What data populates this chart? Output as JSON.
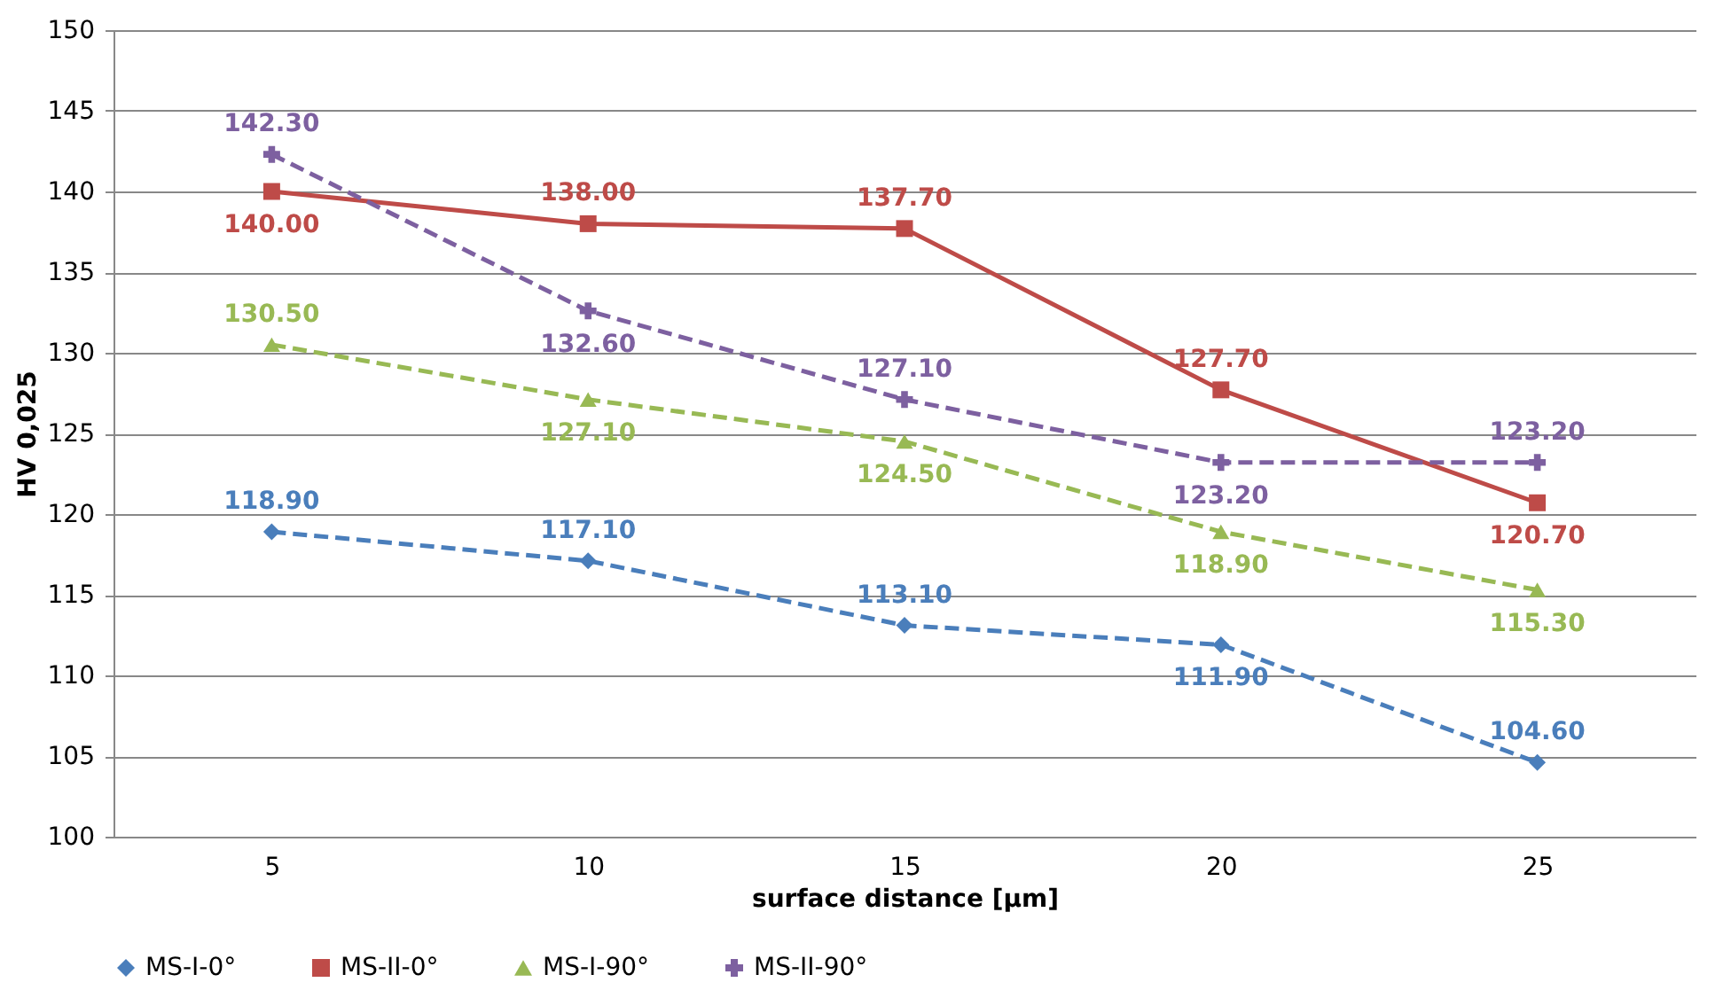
{
  "chart_data": {
    "type": "line",
    "xlabel": "surface distance [μm]",
    "ylabel": "HV 0,025",
    "categories": [
      "5",
      "10",
      "15",
      "20",
      "25"
    ],
    "series": [
      {
        "name": "MS-I-0°",
        "color": "#4a7ebb",
        "marker": "diamond",
        "line_style": "dashed",
        "values": [
          118.9,
          117.1,
          113.1,
          111.9,
          104.6
        ],
        "value_labels": [
          "118.90",
          "117.10",
          "113.10",
          "111.90",
          "104.60"
        ]
      },
      {
        "name": "MS-II-0°",
        "color": "#be4b48",
        "marker": "square",
        "line_style": "solid",
        "values": [
          140.0,
          138.0,
          137.7,
          127.7,
          120.7
        ],
        "value_labels": [
          "140.00",
          "138.00",
          "137.70",
          "127.70",
          "120.70"
        ]
      },
      {
        "name": "MS-I-90°",
        "color": "#98b954",
        "marker": "triangle",
        "line_style": "dashed",
        "values": [
          130.5,
          127.1,
          124.5,
          118.9,
          115.3
        ],
        "value_labels": [
          "130.50",
          "127.10",
          "124.50",
          "118.90",
          "115.30"
        ]
      },
      {
        "name": "MS-II-90°",
        "color": "#7d60a0",
        "marker": "cross",
        "line_style": "dashed",
        "values": [
          142.3,
          132.6,
          127.1,
          123.2,
          123.2
        ],
        "value_labels": [
          "142.30",
          "132.60",
          "127.10",
          "123.20",
          "123.20"
        ]
      }
    ],
    "ylim": [
      100,
      150
    ],
    "yticks": [
      100,
      105,
      110,
      115,
      120,
      125,
      130,
      135,
      140,
      145,
      150
    ],
    "grid": "y",
    "legend": "bottom"
  }
}
